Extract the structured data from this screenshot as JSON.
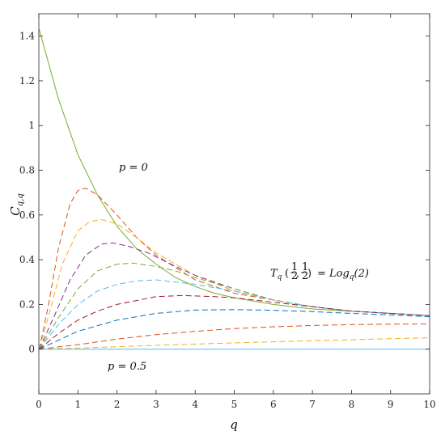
{
  "chart_data": {
    "type": "line",
    "xlabel": "q",
    "ylabel": "C",
    "ylabel_sub": "q,q",
    "xlim": [
      0,
      10
    ],
    "ylim": [
      -0.2,
      1.5
    ],
    "xticks": [
      0,
      1,
      2,
      3,
      4,
      5,
      6,
      7,
      8,
      9,
      10
    ],
    "yticks": [
      0,
      0.2,
      0.4,
      0.6,
      0.8,
      1,
      1.2,
      1.4
    ],
    "ytick_labels": [
      "0",
      "0.2",
      "0.4",
      "0.6",
      "0.8",
      "1",
      "1.2",
      "1.4"
    ],
    "grid": false,
    "annotations": {
      "top": "p = 0",
      "bottom": "p = 0.5",
      "formula": "T_q(1/2, 1/2) = Log_q(2)"
    },
    "series": [
      {
        "style": "solid",
        "color": "#77ac30",
        "x": [
          0.01,
          0.5,
          1,
          1.5,
          2,
          2.5,
          3,
          3.5,
          4,
          4.5,
          5,
          6,
          7,
          8,
          9,
          10
        ],
        "y": [
          1.43,
          1.12,
          0.87,
          0.69,
          0.55,
          0.45,
          0.38,
          0.32,
          0.28,
          0.25,
          0.23,
          0.2,
          0.18,
          0.17,
          0.16,
          0.15
        ]
      },
      {
        "style": "dashed",
        "color": "#d95319",
        "x": [
          0.01,
          0.25,
          0.5,
          0.8,
          1,
          1.2,
          1.5,
          2,
          2.5,
          3,
          4,
          5,
          6,
          7,
          8,
          9,
          10
        ],
        "y": [
          0,
          0.2,
          0.45,
          0.65,
          0.71,
          0.72,
          0.69,
          0.6,
          0.5,
          0.42,
          0.31,
          0.25,
          0.22,
          0.19,
          0.17,
          0.16,
          0.15
        ]
      },
      {
        "style": "dashed",
        "color": "#edb120",
        "x": [
          0.01,
          0.3,
          0.6,
          1,
          1.3,
          1.6,
          2,
          2.5,
          3,
          4,
          5,
          6,
          7,
          8,
          9,
          10
        ],
        "y": [
          0,
          0.18,
          0.38,
          0.53,
          0.57,
          0.58,
          0.56,
          0.5,
          0.43,
          0.33,
          0.26,
          0.22,
          0.19,
          0.17,
          0.16,
          0.15
        ]
      },
      {
        "style": "dashed",
        "color": "#7e2f8e",
        "x": [
          0.01,
          0.4,
          0.8,
          1.2,
          1.6,
          1.9,
          2.3,
          2.8,
          3.5,
          4,
          5,
          6,
          7,
          8,
          9,
          10
        ],
        "y": [
          0,
          0.15,
          0.31,
          0.42,
          0.47,
          0.475,
          0.46,
          0.43,
          0.37,
          0.33,
          0.27,
          0.22,
          0.19,
          0.17,
          0.16,
          0.15
        ]
      },
      {
        "style": "dashed",
        "color": "#77ac30",
        "x": [
          0.01,
          0.5,
          1,
          1.5,
          2,
          2.4,
          3,
          3.5,
          4,
          5,
          6,
          7,
          8,
          9,
          10
        ],
        "y": [
          0,
          0.14,
          0.27,
          0.35,
          0.38,
          0.385,
          0.37,
          0.35,
          0.32,
          0.27,
          0.22,
          0.19,
          0.17,
          0.16,
          0.15
        ]
      },
      {
        "style": "dashed",
        "color": "#4dbeee",
        "x": [
          0.01,
          0.5,
          1,
          1.5,
          2,
          2.5,
          3,
          3.5,
          4,
          5,
          6,
          7,
          8,
          9,
          10
        ],
        "y": [
          0,
          0.11,
          0.2,
          0.26,
          0.29,
          0.305,
          0.31,
          0.3,
          0.29,
          0.26,
          0.22,
          0.19,
          0.17,
          0.16,
          0.15
        ]
      },
      {
        "style": "dashed",
        "color": "#a2142f",
        "x": [
          0.01,
          0.5,
          1,
          1.5,
          2,
          3,
          3.7,
          4.5,
          5,
          6,
          7,
          8,
          9,
          10
        ],
        "y": [
          0,
          0.07,
          0.13,
          0.17,
          0.2,
          0.235,
          0.24,
          0.235,
          0.23,
          0.21,
          0.19,
          0.17,
          0.16,
          0.15
        ]
      },
      {
        "style": "dashed",
        "color": "#0072bd",
        "x": [
          0.01,
          0.5,
          1,
          2,
          3,
          4,
          5,
          6,
          7,
          8,
          9,
          10
        ],
        "y": [
          0,
          0.04,
          0.08,
          0.13,
          0.16,
          0.175,
          0.177,
          0.174,
          0.168,
          0.16,
          0.153,
          0.145
        ]
      },
      {
        "style": "dashed",
        "color": "#d95319",
        "x": [
          0.01,
          1,
          2,
          3,
          4,
          5,
          6,
          7,
          8,
          9,
          10
        ],
        "y": [
          0,
          0.02,
          0.045,
          0.065,
          0.08,
          0.092,
          0.1,
          0.106,
          0.11,
          0.112,
          0.113
        ]
      },
      {
        "style": "dashed",
        "color": "#edb120",
        "x": [
          0.01,
          1,
          2,
          3,
          4,
          5,
          6,
          7,
          8,
          9,
          10
        ],
        "y": [
          0,
          0.005,
          0.011,
          0.017,
          0.023,
          0.028,
          0.033,
          0.038,
          0.042,
          0.047,
          0.051
        ]
      },
      {
        "style": "solid",
        "color": "#4dbeee",
        "x": [
          0,
          10
        ],
        "y": [
          0,
          0
        ]
      }
    ]
  }
}
